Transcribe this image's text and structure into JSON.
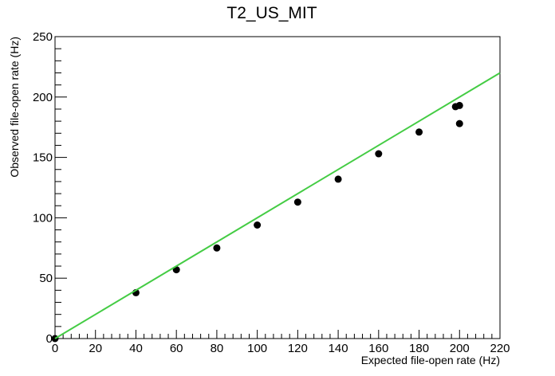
{
  "chart_data": {
    "type": "scatter",
    "title": "T2_US_MIT",
    "xlabel": "Expected file-open rate (Hz)",
    "ylabel": "Observed file-open rate (Hz)",
    "xlim": [
      0,
      220
    ],
    "ylim": [
      0,
      250
    ],
    "xticks": [
      "0",
      "20",
      "40",
      "60",
      "80",
      "100",
      "120",
      "140",
      "160",
      "180",
      "200",
      "220"
    ],
    "yticks": [
      "0",
      "50",
      "100",
      "150",
      "200",
      "250"
    ],
    "grid": false,
    "legend": "none",
    "series": [
      {
        "type": "scatter",
        "color": "#000000",
        "points": [
          [
            0,
            0
          ],
          [
            40,
            38
          ],
          [
            60,
            57
          ],
          [
            80,
            75
          ],
          [
            100,
            94
          ],
          [
            120,
            113
          ],
          [
            140,
            132
          ],
          [
            160,
            153
          ],
          [
            180,
            171
          ],
          [
            198,
            192
          ],
          [
            200,
            193
          ],
          [
            200,
            178
          ]
        ]
      },
      {
        "type": "line",
        "color": "#44cc44",
        "points": [
          [
            0,
            0
          ],
          [
            220,
            220
          ]
        ]
      }
    ]
  }
}
